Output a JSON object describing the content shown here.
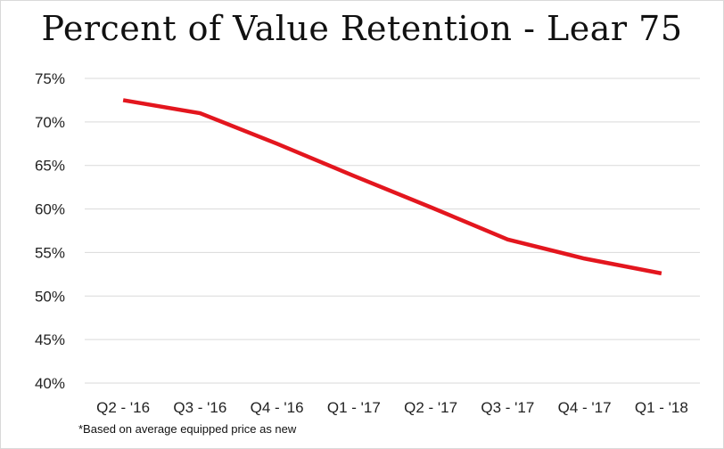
{
  "chart_data": {
    "type": "line",
    "title": "Percent of Value Retention - Lear 75",
    "xlabel": "",
    "ylabel": "",
    "categories": [
      "Q2 - '16",
      "Q3 - '16",
      "Q4 - '16",
      "Q1 - '17",
      "Q2 - '17",
      "Q3 - '17",
      "Q4 - '17",
      "Q1 - '18"
    ],
    "series": [
      {
        "color": "#e3161e",
        "values": [
          72.5,
          71.0,
          67.5,
          63.8,
          60.2,
          56.5,
          54.3,
          52.6
        ]
      }
    ],
    "ylim": [
      40,
      75
    ],
    "yticks": [
      40,
      45,
      50,
      55,
      60,
      65,
      70,
      75
    ],
    "ytick_labels": [
      "40%",
      "45%",
      "50%",
      "55%",
      "60%",
      "65%",
      "70%",
      "75%"
    ],
    "grid": "horizontal",
    "legend": "none"
  },
  "footnote": "*Based on average equipped price as new",
  "colors": {
    "line": "#e3161e",
    "grid": "#d9d9d9",
    "text": "#222222"
  }
}
